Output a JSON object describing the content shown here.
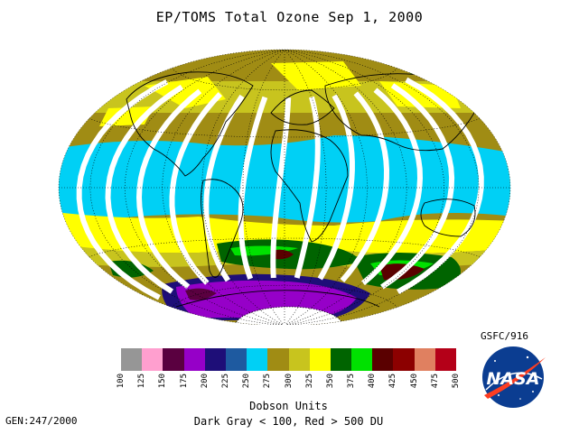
{
  "title": "EP/TOMS Total Ozone Sep  1, 2000",
  "legend": {
    "units_label": "Dobson Units",
    "range_note": "Dark Gray < 100, Red > 500 DU",
    "ticks": [
      "100",
      "125",
      "150",
      "175",
      "200",
      "225",
      "250",
      "275",
      "300",
      "325",
      "350",
      "375",
      "400",
      "425",
      "450",
      "475",
      "500"
    ],
    "colors": [
      "#969696",
      "#ff9fcf",
      "#5a0040",
      "#9600c8",
      "#1e0e78",
      "#1e5aa0",
      "#00d0f5",
      "#a08c14",
      "#c8c41e",
      "#ffff00",
      "#006400",
      "#00e100",
      "#5a0000",
      "#8c0000",
      "#e08060",
      "#b40018"
    ]
  },
  "footer": {
    "generation": "GEN:247/2000",
    "agency": "GSFC/916"
  },
  "logo": {
    "text": "NASA",
    "icon": "nasa-meatball-icon"
  },
  "map": {
    "projection": "hammer-aitoff",
    "colors": {
      "tropics": "#00d0f5",
      "midlat": "#a08c14",
      "yellow": "#ffff00",
      "olive_light": "#c8c41e",
      "dark_green": "#006400",
      "bright_green": "#00e100",
      "maroon": "#5a0000",
      "purple": "#9600c8",
      "navy": "#1e0e78",
      "magenta_dark": "#5a0040",
      "white": "#ffffff",
      "coast": "#000000"
    }
  }
}
